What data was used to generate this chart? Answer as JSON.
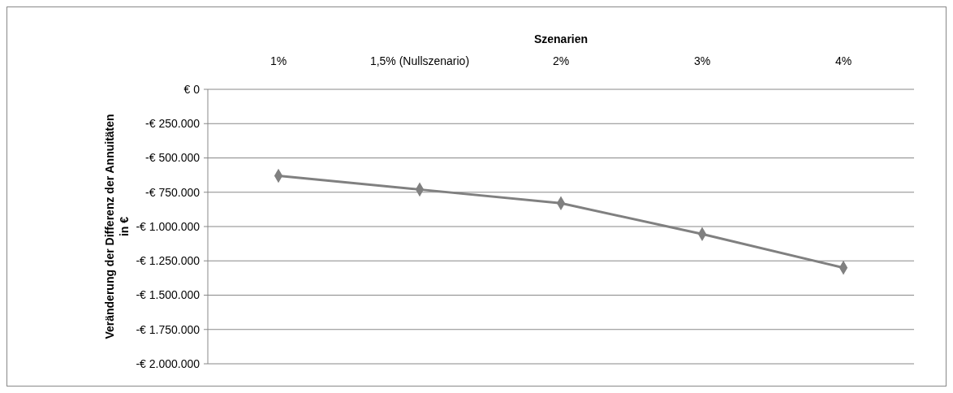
{
  "chart_data": {
    "type": "line",
    "xlabel": "Szenarien",
    "ylabel": "Veränderung der Differenz der Annuitäten in €",
    "categories": [
      "1%",
      "1,5% (Nullszenario)",
      "2%",
      "3%",
      "4%"
    ],
    "series": [
      {
        "color": "#808080",
        "values": [
          -630000,
          -730000,
          -830000,
          -1055000,
          -1300000
        ]
      }
    ],
    "ylim": [
      -2000000,
      0
    ],
    "yticks": [
      {
        "value": 0,
        "label": "€ 0"
      },
      {
        "value": -250000,
        "label": "-€ 250.000"
      },
      {
        "value": -500000,
        "label": "-€ 500.000"
      },
      {
        "value": -750000,
        "label": "-€ 750.000"
      },
      {
        "value": -1000000,
        "label": "-€ 1.000.000"
      },
      {
        "value": -1250000,
        "label": "-€ 1.250.000"
      },
      {
        "value": -1500000,
        "label": "-€ 1.500.000"
      },
      {
        "value": -1750000,
        "label": "-€ 1.750.000"
      },
      {
        "value": -2000000,
        "label": "-€ 2.000.000"
      }
    ],
    "grid": "y",
    "marker": "diamond",
    "line_style": "solid"
  }
}
